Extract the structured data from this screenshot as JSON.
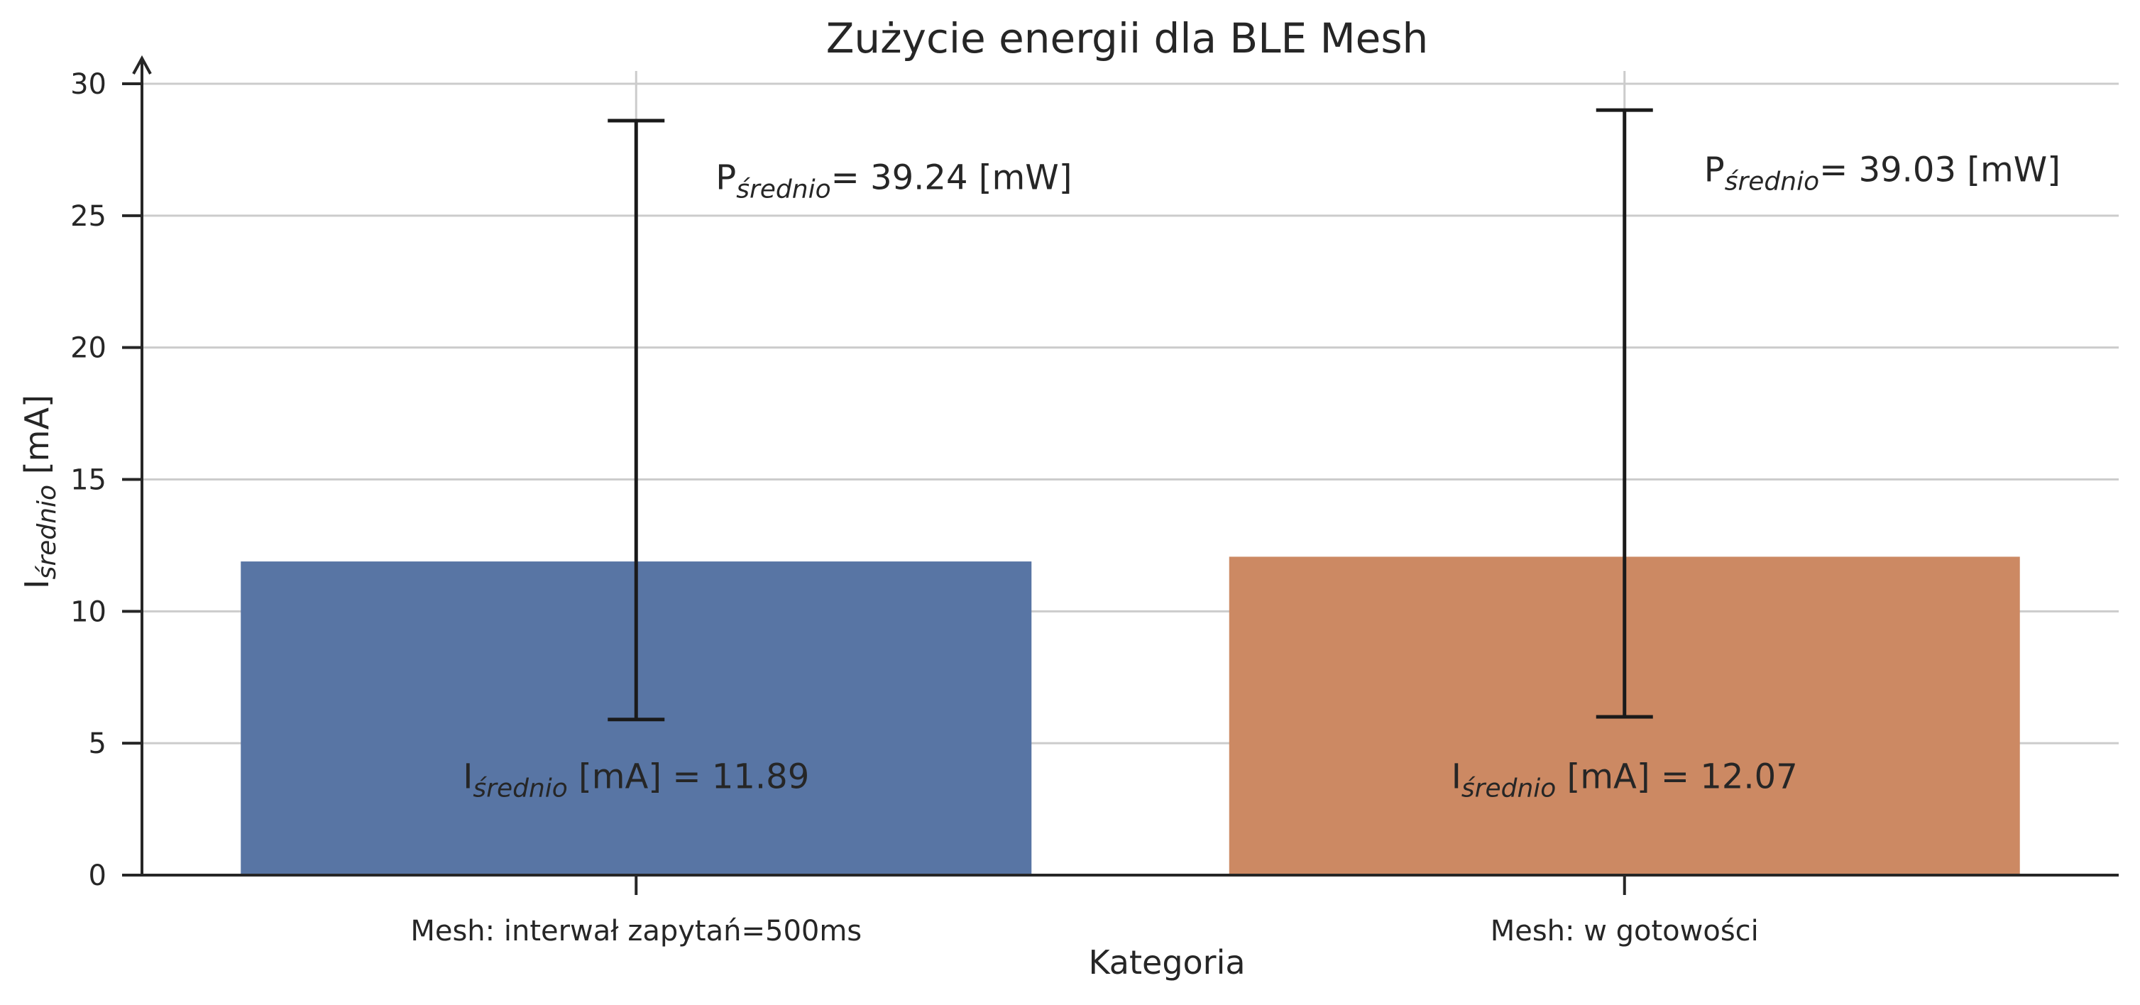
{
  "chart_data": {
    "type": "bar",
    "title": "Zużycie energii dla BLE Mesh",
    "xlabel": "Kategoria",
    "ylabel": {
      "main": "I",
      "sub": "średnio",
      "unit": " [mA]"
    },
    "categories": [
      "Mesh: interwał zapytań=500ms",
      "Mesh: w gotowości"
    ],
    "values": [
      11.89,
      12.07
    ],
    "error_low": [
      5.9,
      6.0
    ],
    "error_high": [
      28.6,
      29.0
    ],
    "colors": [
      "#5875a4",
      "#cc8963"
    ],
    "ylim": [
      0,
      30
    ],
    "yticks": [
      0,
      5,
      10,
      15,
      20,
      25,
      30
    ],
    "grid": true,
    "bar_labels": [
      {
        "prefix": "I",
        "sub": "średnio",
        "text": " [mA] = 11.89"
      },
      {
        "prefix": "I",
        "sub": "średnio",
        "text": " [mA] = 12.07"
      }
    ],
    "power_labels": [
      {
        "prefix": "P",
        "sub": "średnio",
        "text": "= 39.24 [mW]",
        "y": 26
      },
      {
        "prefix": "P",
        "sub": "średnio",
        "text": "= 39.03 [mW]",
        "y": 26.3
      }
    ]
  }
}
